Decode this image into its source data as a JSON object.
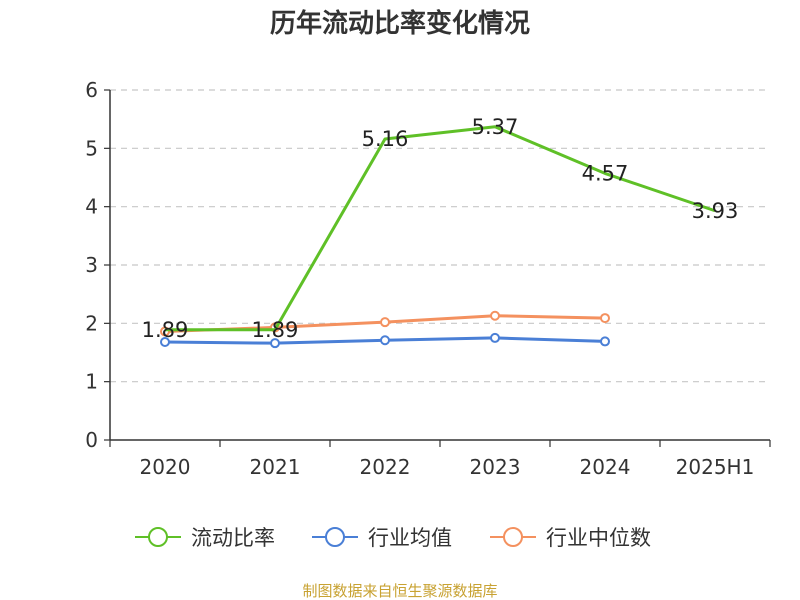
{
  "chart_data": {
    "type": "line",
    "title": "历年流动比率变化情况",
    "categories": [
      "2020",
      "2021",
      "2022",
      "2023",
      "2024",
      "2025H1"
    ],
    "ylim": [
      0,
      6
    ],
    "yticks": [
      "0",
      "1",
      "2",
      "3",
      "4",
      "5",
      "6"
    ],
    "grid": true,
    "legend_position": "bottom",
    "series": [
      {
        "name": "流动比率",
        "color": "#5fc027",
        "values": [
          1.89,
          1.89,
          5.16,
          5.37,
          4.57,
          3.93
        ],
        "labels": [
          "1.89",
          "1.89",
          "5.16",
          "5.37",
          "4.57",
          "3.93"
        ],
        "markers": false
      },
      {
        "name": "行业均值",
        "color": "#4a7fd6",
        "values": [
          1.68,
          1.66,
          1.71,
          1.75,
          1.69,
          null
        ],
        "markers": true
      },
      {
        "name": "行业中位数",
        "color": "#f4915f",
        "values": [
          1.86,
          1.93,
          2.02,
          2.13,
          2.09,
          null
        ],
        "markers": true
      }
    ]
  },
  "footer": {
    "source": "制图数据来自恒生聚源数据库"
  }
}
